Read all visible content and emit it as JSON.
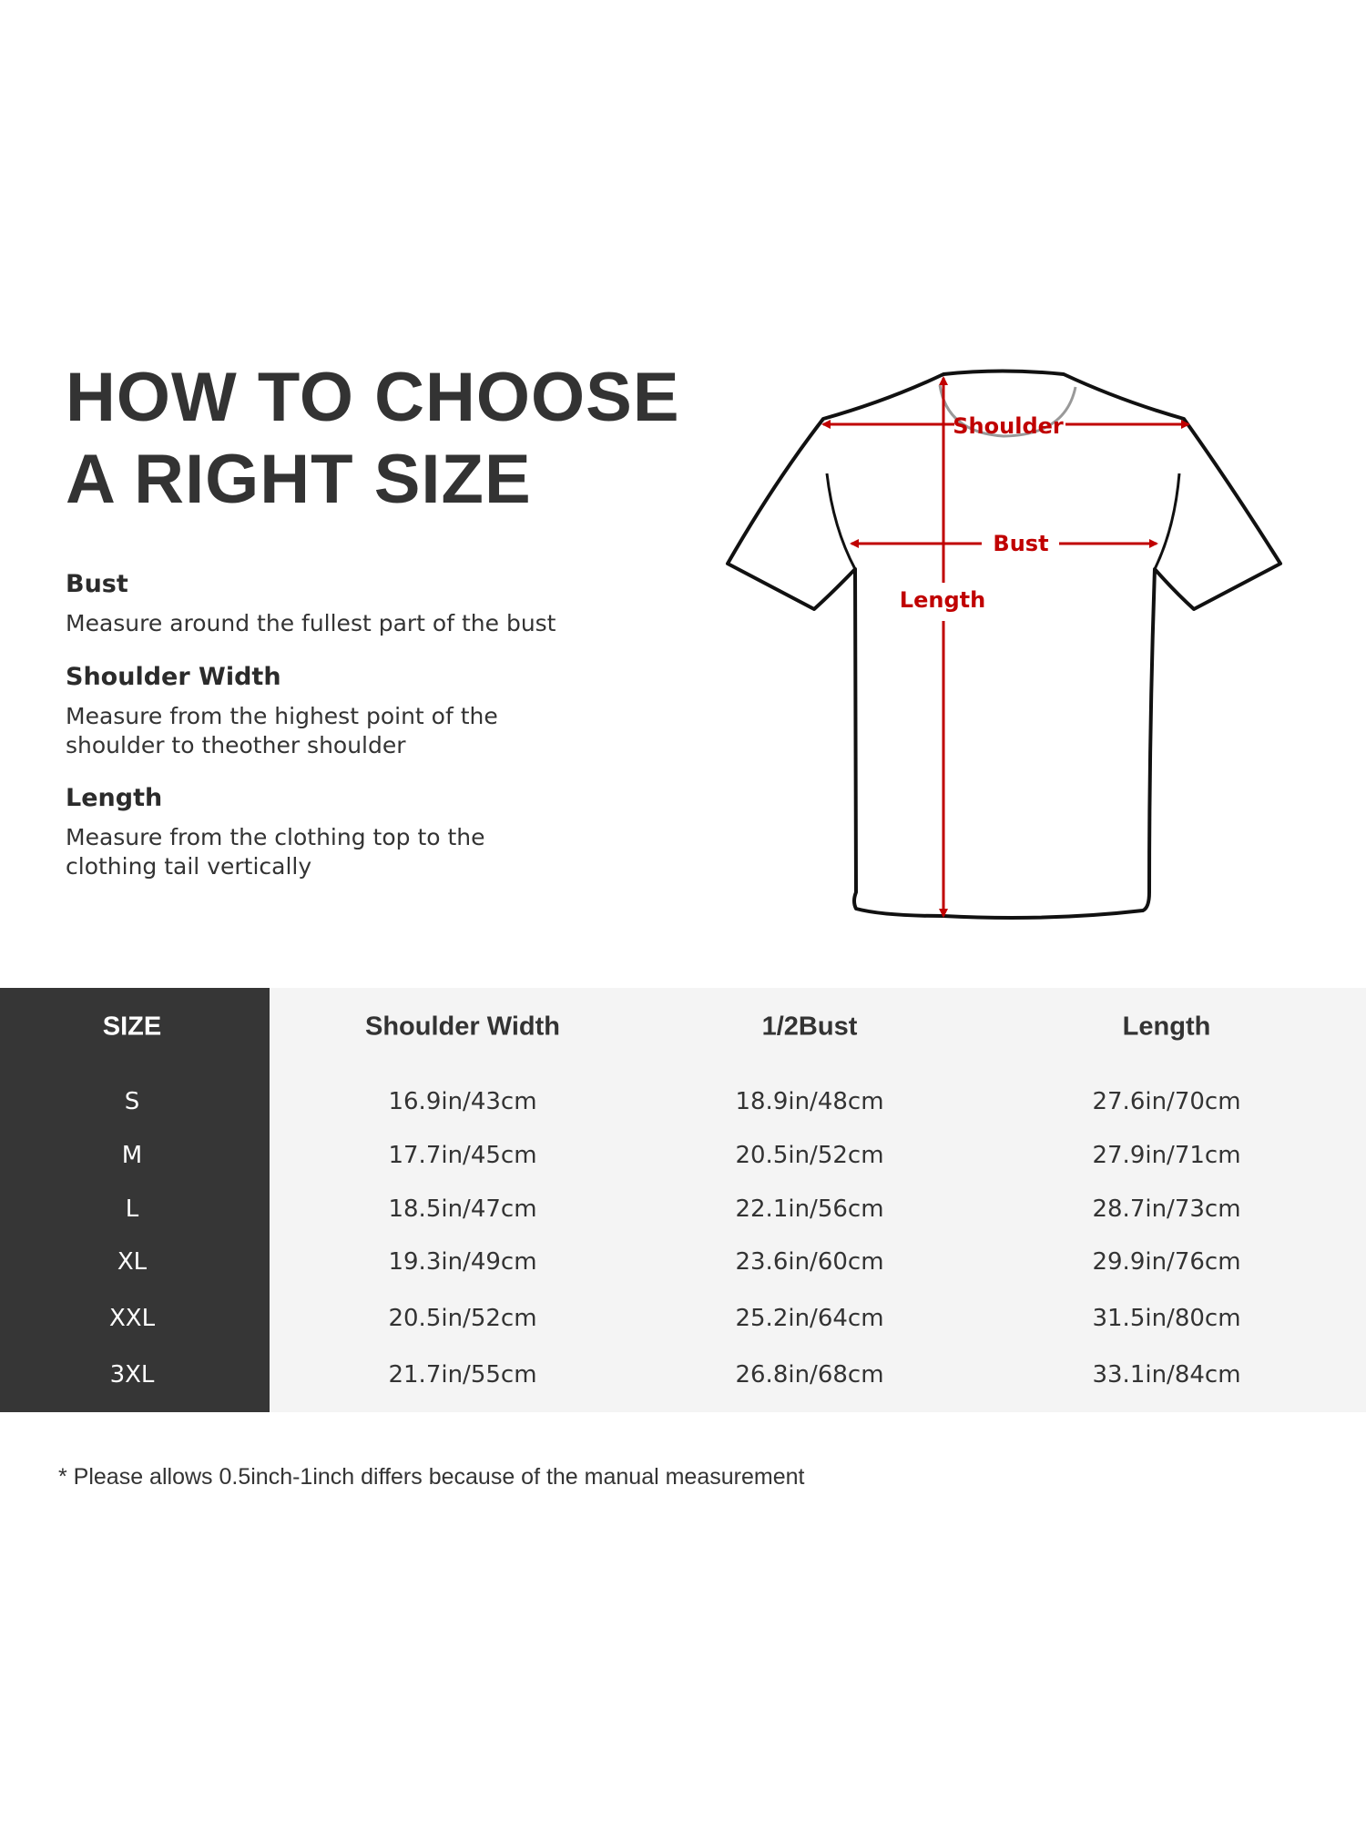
{
  "title": {
    "line1": "HOW TO CHOOSE",
    "line2": "A RIGHT SIZE"
  },
  "guides": [
    {
      "heading": "Bust",
      "lines": [
        "Measure around the fullest part of the bust"
      ]
    },
    {
      "heading": "Shoulder Width",
      "lines": [
        "Measure from the highest point of the",
        "shoulder to theother shoulder"
      ]
    },
    {
      "heading": "Length",
      "lines": [
        "Measure from the clothing top to the",
        "clothing tail vertically"
      ]
    }
  ],
  "diagram": {
    "labels": {
      "shoulder": "Shoulder",
      "bust": "Bust",
      "length": "Length"
    },
    "arrow_color": "#c00000"
  },
  "table": {
    "headers": [
      "SIZE",
      "Shoulder Width",
      "1/2Bust",
      "Length"
    ],
    "rows": [
      [
        "S",
        "16.9in/43cm",
        "18.9in/48cm",
        "27.6in/70cm"
      ],
      [
        "M",
        "17.7in/45cm",
        "20.5in/52cm",
        "27.9in/71cm"
      ],
      [
        "L",
        "18.5in/47cm",
        "22.1in/56cm",
        "28.7in/73cm"
      ],
      [
        "XL",
        "19.3in/49cm",
        "23.6in/60cm",
        "29.9in/76cm"
      ],
      [
        "XXL",
        "20.5in/52cm",
        "25.2in/64cm",
        "31.5in/80cm"
      ],
      [
        "3XL",
        "21.7in/55cm",
        "26.8in/68cm",
        "33.1in/84cm"
      ]
    ]
  },
  "footnote": "* Please allows 0.5inch-1inch differs because of the  manual measurement"
}
